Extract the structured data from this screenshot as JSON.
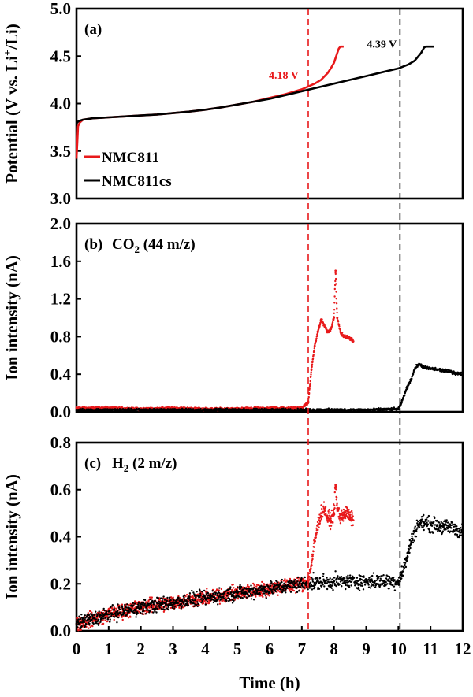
{
  "chart_data": [
    {
      "type": "line",
      "panel": "(a)",
      "title": "",
      "xlabel": "Time (h)",
      "ylabel": "Potential (V vs. Li+/Li)",
      "ylabel_parts": {
        "pre": "Potential (V vs. Li",
        "sup": "+",
        "post": "/Li)"
      },
      "xlim": [
        0,
        12
      ],
      "ylim": [
        3.0,
        5.0
      ],
      "yticks": [
        3.0,
        3.5,
        4.0,
        4.5,
        5.0
      ],
      "ytick_labels": [
        "3.0",
        "3.5",
        "4.0",
        "4.5",
        "5.0"
      ],
      "legend": [
        "NMC811",
        "NMC811cs"
      ],
      "series": [
        {
          "name": "NMC811",
          "color": "#e8191b",
          "x": [
            0.0,
            0.02,
            0.05,
            0.1,
            0.2,
            0.5,
            1.0,
            1.5,
            2.0,
            2.5,
            3.0,
            3.5,
            4.0,
            4.5,
            5.0,
            5.5,
            6.0,
            6.5,
            7.0,
            7.2,
            7.4,
            7.6,
            7.8,
            7.9,
            8.0,
            8.05,
            8.1,
            8.15,
            8.2,
            8.25,
            8.3
          ],
          "y": [
            3.42,
            3.55,
            3.76,
            3.8,
            3.83,
            3.845,
            3.855,
            3.865,
            3.875,
            3.885,
            3.9,
            3.915,
            3.935,
            3.96,
            3.99,
            4.02,
            4.06,
            4.1,
            4.15,
            4.18,
            4.21,
            4.25,
            4.32,
            4.37,
            4.43,
            4.48,
            4.53,
            4.58,
            4.6,
            4.6,
            4.6
          ]
        },
        {
          "name": "NMC811cs",
          "color": "#000000",
          "x": [
            0.0,
            0.02,
            0.05,
            0.1,
            0.2,
            0.5,
            1.0,
            1.5,
            2.0,
            2.5,
            3.0,
            3.5,
            4.0,
            4.5,
            5.0,
            5.5,
            6.0,
            6.5,
            7.0,
            7.5,
            8.0,
            8.5,
            9.0,
            9.5,
            10.0,
            10.3,
            10.5,
            10.7,
            10.8,
            10.85,
            11.0,
            11.1
          ],
          "y": [
            3.78,
            3.8,
            3.81,
            3.82,
            3.83,
            3.845,
            3.855,
            3.865,
            3.875,
            3.885,
            3.9,
            3.915,
            3.935,
            3.96,
            3.99,
            4.02,
            4.05,
            4.09,
            4.13,
            4.17,
            4.21,
            4.25,
            4.29,
            4.33,
            4.37,
            4.41,
            4.45,
            4.53,
            4.59,
            4.6,
            4.6,
            4.6
          ]
        }
      ],
      "annotations": [
        {
          "text": "4.18 V",
          "x": 7.2,
          "y": 4.18,
          "color": "#e8191b"
        },
        {
          "text": "4.39 V",
          "x": 10.05,
          "y": 4.39,
          "color": "#000000"
        }
      ]
    },
    {
      "type": "scatter",
      "panel": "(b)",
      "title": "",
      "label_parts": {
        "pre": "CO",
        "sub": "2",
        "post": " (44 m/z)"
      },
      "xlabel": "Time (h)",
      "ylabel": "Ion intensity (nA)",
      "xlim": [
        0,
        12
      ],
      "ylim": [
        0.0,
        2.0
      ],
      "yticks": [
        0.0,
        0.4,
        0.8,
        1.2,
        1.6,
        2.0
      ],
      "ytick_labels": [
        "0.0",
        "0.4",
        "0.8",
        "1.2",
        "1.6",
        "2.0"
      ],
      "series": [
        {
          "name": "NMC811",
          "color": "#e8191b",
          "x": [
            0,
            1,
            2,
            3,
            4,
            5,
            6,
            7,
            7.2,
            7.3,
            7.4,
            7.5,
            7.6,
            7.7,
            7.8,
            7.9,
            8.0,
            8.05,
            8.1,
            8.2,
            8.3,
            8.4,
            8.5,
            8.6
          ],
          "y": [
            0.04,
            0.04,
            0.03,
            0.04,
            0.03,
            0.03,
            0.04,
            0.04,
            0.1,
            0.45,
            0.7,
            0.85,
            0.98,
            0.92,
            0.85,
            0.88,
            1.0,
            1.5,
            1.0,
            0.85,
            0.8,
            0.8,
            0.78,
            0.75
          ]
        },
        {
          "name": "NMC811cs",
          "color": "#000000",
          "x": [
            0,
            1,
            2,
            3,
            4,
            5,
            6,
            7,
            8,
            9,
            10,
            10.1,
            10.2,
            10.3,
            10.4,
            10.5,
            10.6,
            10.7,
            10.8,
            11.0,
            11.2,
            11.4,
            11.6,
            11.8,
            12.0
          ],
          "y": [
            0.02,
            0.02,
            0.02,
            0.02,
            0.02,
            0.02,
            0.02,
            0.02,
            0.02,
            0.02,
            0.03,
            0.1,
            0.2,
            0.28,
            0.35,
            0.45,
            0.5,
            0.5,
            0.47,
            0.46,
            0.45,
            0.44,
            0.43,
            0.41,
            0.4
          ]
        }
      ]
    },
    {
      "type": "scatter",
      "panel": "(c)",
      "title": "",
      "label_parts": {
        "pre": "H",
        "sub": "2",
        "post": " (2 m/z)"
      },
      "xlabel": "Time (h)",
      "ylabel": "Ion intensity (nA)",
      "xlim": [
        0,
        12
      ],
      "ylim": [
        0.0,
        0.8
      ],
      "xticks": [
        0,
        1,
        2,
        3,
        4,
        5,
        6,
        7,
        8,
        9,
        10,
        11,
        12
      ],
      "xtick_labels": [
        "0",
        "1",
        "2",
        "3",
        "4",
        "5",
        "6",
        "7",
        "8",
        "9",
        "10",
        "11",
        "12"
      ],
      "yticks": [
        0.0,
        0.2,
        0.4,
        0.6,
        0.8
      ],
      "ytick_labels": [
        "0.0",
        "0.2",
        "0.4",
        "0.6",
        "0.8"
      ],
      "series": [
        {
          "name": "NMC811",
          "color": "#e8191b",
          "x": [
            0,
            1,
            2,
            3,
            4,
            5,
            6,
            7,
            7.2,
            7.3,
            7.4,
            7.5,
            7.6,
            7.7,
            7.8,
            7.9,
            8.0,
            8.05,
            8.1,
            8.2,
            8.3,
            8.4,
            8.5,
            8.6
          ],
          "y": [
            0.03,
            0.07,
            0.1,
            0.12,
            0.14,
            0.16,
            0.18,
            0.2,
            0.21,
            0.28,
            0.38,
            0.45,
            0.5,
            0.52,
            0.48,
            0.47,
            0.5,
            0.62,
            0.52,
            0.48,
            0.5,
            0.5,
            0.48,
            0.47
          ]
        },
        {
          "name": "NMC811cs",
          "color": "#000000",
          "x": [
            0,
            1,
            2,
            3,
            4,
            5,
            6,
            7,
            8,
            9,
            10,
            10.1,
            10.2,
            10.3,
            10.4,
            10.5,
            10.6,
            10.7,
            10.8,
            11.0,
            11.2,
            11.4,
            11.6,
            11.8,
            12.0
          ],
          "y": [
            0.03,
            0.07,
            0.1,
            0.12,
            0.14,
            0.16,
            0.18,
            0.2,
            0.21,
            0.21,
            0.21,
            0.24,
            0.28,
            0.33,
            0.38,
            0.42,
            0.45,
            0.46,
            0.46,
            0.45,
            0.45,
            0.44,
            0.44,
            0.43,
            0.42
          ]
        }
      ]
    }
  ],
  "markers": [
    {
      "x": 7.2,
      "color": "#e8191b",
      "style": "dashed"
    },
    {
      "x": 10.05,
      "color": "#000000",
      "style": "dashed"
    }
  ]
}
